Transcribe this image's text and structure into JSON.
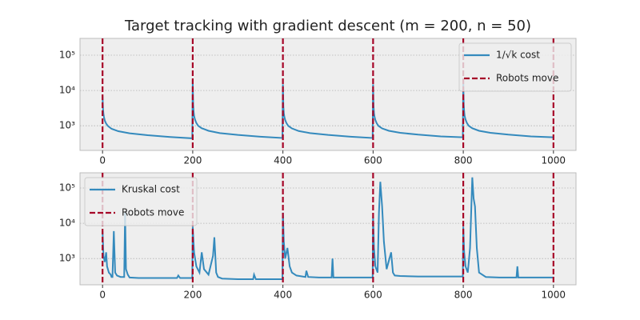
{
  "chart_data": [
    {
      "type": "line",
      "title": "Target tracking with gradient descent (m = 200, n = 50)",
      "x": [
        0,
        1,
        2,
        3,
        5,
        8,
        12,
        20,
        35,
        60,
        100,
        150,
        199,
        200,
        201,
        202,
        203,
        205,
        208,
        212,
        220,
        235,
        260,
        300,
        350,
        399,
        400,
        401,
        402,
        403,
        405,
        408,
        412,
        420,
        435,
        460,
        500,
        550,
        599,
        600,
        601,
        602,
        603,
        605,
        608,
        612,
        620,
        635,
        660,
        700,
        750,
        799,
        800,
        801,
        802,
        803,
        805,
        808,
        812,
        820,
        835,
        860,
        900,
        950,
        999,
        1000
      ],
      "series": [
        {
          "name": "1/√k cost",
          "color": "#348abd",
          "values": [
            7000,
            3000,
            2200,
            1800,
            1400,
            1150,
            980,
            820,
            700,
            610,
            540,
            480,
            440,
            20000,
            4000,
            2500,
            1900,
            1500,
            1200,
            1000,
            850,
            720,
            620,
            550,
            490,
            450,
            15000,
            3500,
            2300,
            1850,
            1450,
            1180,
            990,
            840,
            710,
            620,
            550,
            490,
            450,
            15000,
            3500,
            2300,
            1850,
            1450,
            1180,
            990,
            840,
            720,
            630,
            560,
            500,
            470,
            20000,
            4000,
            2500,
            1900,
            1500,
            1200,
            1000,
            850,
            720,
            630,
            560,
            500,
            470,
            460
          ]
        }
      ],
      "vlines": {
        "name": "Robots move",
        "color": "#a60628",
        "values": [
          0,
          200,
          400,
          600,
          800,
          1000
        ]
      },
      "xlim": [
        -50,
        1050
      ],
      "ylim": [
        200,
        300000
      ],
      "log_y": true,
      "xticks": [
        0,
        200,
        400,
        600,
        800,
        1000
      ],
      "yticks": [
        {
          "value": 1000,
          "label": "10³"
        },
        {
          "value": 10000,
          "label": "10⁴"
        },
        {
          "value": 100000,
          "label": "10⁵"
        }
      ],
      "grid": true,
      "legend": "upper right"
    },
    {
      "type": "line",
      "x": [
        0,
        2,
        5,
        8,
        10,
        14,
        18,
        20,
        22,
        25,
        28,
        32,
        40,
        48,
        50,
        52,
        56,
        60,
        80,
        120,
        165,
        168,
        172,
        199,
        200,
        203,
        208,
        215,
        220,
        225,
        235,
        245,
        248,
        252,
        256,
        265,
        300,
        334,
        336,
        340,
        380,
        399,
        400,
        402,
        405,
        410,
        415,
        420,
        430,
        450,
        452,
        456,
        480,
        508,
        510,
        512,
        560,
        599,
        600,
        602,
        605,
        610,
        613,
        616,
        620,
        624,
        630,
        640,
        644,
        648,
        660,
        700,
        760,
        799,
        800,
        802,
        805,
        810,
        815,
        820,
        823,
        826,
        830,
        835,
        850,
        880,
        918,
        920,
        922,
        960,
        999,
        1000
      ],
      "series": [
        {
          "name": "Kruskal cost",
          "color": "#348abd",
          "values": [
            6000,
            1200,
            800,
            1500,
            600,
            400,
            350,
            300,
            300,
            6000,
            400,
            330,
            300,
            300,
            20000,
            500,
            350,
            290,
            280,
            280,
            280,
            330,
            280,
            280,
            8000,
            1500,
            600,
            400,
            1500,
            500,
            350,
            1200,
            4000,
            400,
            300,
            270,
            260,
            260,
            350,
            260,
            260,
            260,
            20000,
            3000,
            1000,
            2000,
            600,
            400,
            330,
            300,
            450,
            300,
            290,
            290,
            1000,
            290,
            290,
            290,
            15000,
            2000,
            600,
            400,
            20000,
            150000,
            30000,
            3000,
            500,
            1500,
            400,
            330,
            320,
            310,
            310,
            310,
            8000,
            1500,
            600,
            400,
            2000,
            200000,
            50000,
            30000,
            2000,
            400,
            300,
            290,
            290,
            600,
            290,
            290,
            290,
            290
          ]
        }
      ],
      "vlines": {
        "name": "Robots move",
        "color": "#a60628",
        "values": [
          0,
          200,
          400,
          600,
          800,
          1000
        ]
      },
      "xlim": [
        -50,
        1050
      ],
      "ylim": [
        180,
        270000
      ],
      "log_y": true,
      "xticks": [
        0,
        200,
        400,
        600,
        800,
        1000
      ],
      "yticks": [
        {
          "value": 1000,
          "label": "10³"
        },
        {
          "value": 10000,
          "label": "10⁴"
        },
        {
          "value": 100000,
          "label": "10⁵"
        }
      ],
      "grid": true,
      "legend": "upper left"
    }
  ]
}
